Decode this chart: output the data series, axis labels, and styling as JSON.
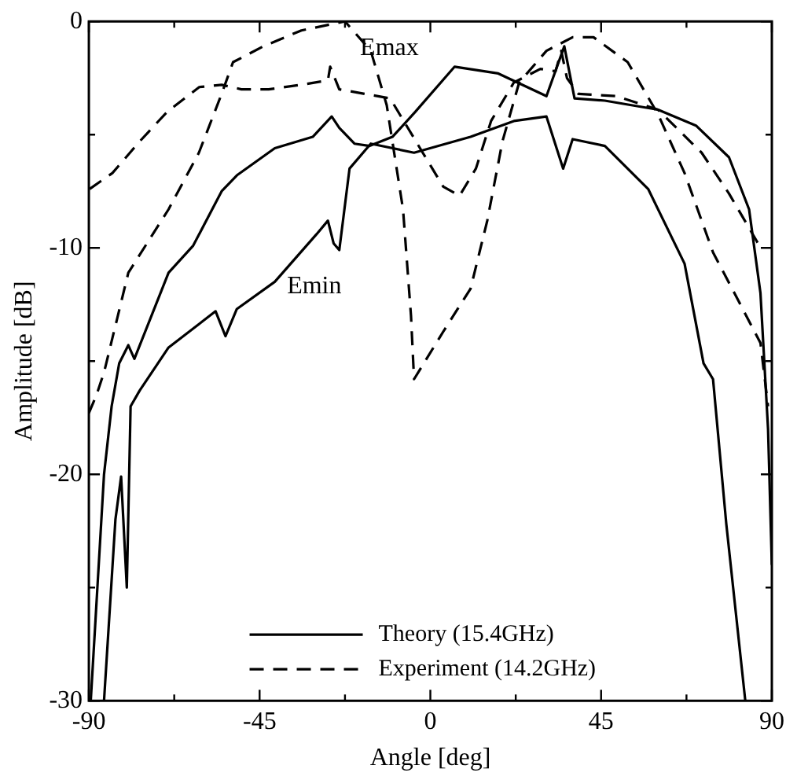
{
  "chart_data": {
    "type": "line",
    "xlabel": "Angle [deg]",
    "ylabel": "Amplitude [dB]",
    "xlim": [
      -90,
      90
    ],
    "ylim": [
      -30,
      0
    ],
    "xticks": [
      -90,
      {
        "value": -67.5,
        "label": null
      },
      -45,
      {
        "value": -22.5,
        "label": null
      },
      0,
      {
        "value": 22.5,
        "label": null
      },
      45,
      {
        "value": 67.5,
        "label": null
      },
      90
    ],
    "yticks": [
      -30,
      {
        "value": -25,
        "label": null
      },
      -20,
      {
        "value": -15,
        "label": null
      },
      -10,
      {
        "value": -5,
        "label": null
      },
      0
    ],
    "grid": false,
    "legend": "bottom",
    "marker": "none",
    "annotations": [
      "Emax",
      "Emin"
    ],
    "series": [
      {
        "name": "Theory (15.4GHz)",
        "color": "#000000",
        "line_style": "solid",
        "x": [
          -89.5,
          -86,
          -84,
          -82,
          -79.6,
          -78,
          -69,
          -62.5,
          -55,
          -51,
          -41,
          -31,
          -26,
          -24,
          -20,
          -16,
          -10,
          -4,
          6.4,
          17.9,
          30.6,
          35.3,
          38,
          46,
          60,
          70,
          78.7,
          84,
          87,
          89,
          90
        ],
        "values": [
          -30,
          -20,
          -17,
          -15.1,
          -14.3,
          -14.9,
          -11.1,
          -9.9,
          -7.5,
          -6.8,
          -5.6,
          -5.1,
          -4.2,
          -4.7,
          -5.4,
          -5.5,
          -5.1,
          -4,
          -2,
          -2.3,
          -3.3,
          -1.1,
          -3.4,
          -3.5,
          -3.9,
          -4.6,
          -6,
          -8.3,
          -12,
          -18,
          -24
        ]
      },
      {
        "color": "#000000",
        "line_style": "solid",
        "x": [
          -86,
          -83,
          -81.5,
          -80,
          -79,
          -76.6,
          -69,
          -56.6,
          -54,
          -51,
          -41,
          -30,
          -27,
          -25.5,
          -24,
          -21.3,
          -15.7,
          -4.3,
          10.6,
          22,
          30.6,
          35,
          37.5,
          46,
          57.4,
          67,
          72,
          74.5,
          78,
          83
        ],
        "values": [
          -30,
          -22,
          -20.1,
          -25,
          -17,
          -16.3,
          -14.4,
          -12.8,
          -13.9,
          -12.7,
          -11.5,
          -9.4,
          -8.8,
          -9.8,
          -10.1,
          -6.5,
          -5.4,
          -5.8,
          -5.1,
          -4.4,
          -4.2,
          -6.5,
          -5.2,
          -5.5,
          -7.4,
          -10.7,
          -15.1,
          -15.8,
          -22.2,
          -30
        ]
      },
      {
        "name": "Experiment (14.2GHz)",
        "color": "#000000",
        "line_style": "dashed",
        "x": [
          -89.8,
          -83.8,
          -76.6,
          -69.4,
          -60.9,
          -55,
          -49.8,
          -42.6,
          -34,
          -27,
          -26.4,
          -24,
          -10.6,
          -2,
          3.4,
          7.7,
          12,
          16,
          22,
          29,
          33,
          34.5,
          36,
          39,
          49,
          60,
          71.5,
          78.7,
          86,
          87
        ],
        "values": [
          -7.4,
          -6.7,
          -5.3,
          -4,
          -2.9,
          -2.8,
          -3,
          -3,
          -2.8,
          -2.6,
          -2,
          -3,
          -3.4,
          -5.8,
          -7.3,
          -7.7,
          -6.5,
          -4.4,
          -2.7,
          -2.1,
          -2.2,
          -1.3,
          -2.5,
          -3.2,
          -3.3,
          -3.9,
          -5.8,
          -7.6,
          -9.7,
          -10
        ]
      },
      {
        "color": "#000000",
        "line_style": "dashed",
        "x": [
          -90,
          -88,
          -86,
          -79.6,
          -69,
          -61,
          -55,
          -52,
          -44,
          -34,
          -22.5,
          -15.7,
          -11.5,
          -7.2,
          -5.1,
          -4.3,
          3.4,
          10.6,
          15,
          19,
          23.4,
          30.6,
          37.5,
          43,
          52,
          60,
          67,
          74.5,
          81.7,
          87,
          89
        ],
        "values": [
          -17.3,
          -16.5,
          -15.5,
          -11.1,
          -8.3,
          -5.8,
          -3.2,
          -1.8,
          -1.1,
          -0.4,
          0,
          -1.3,
          -3.7,
          -8.3,
          -13,
          -15.8,
          -13.7,
          -11.8,
          -8.8,
          -5.3,
          -2.7,
          -1.3,
          -0.7,
          -0.7,
          -1.8,
          -4.1,
          -6.7,
          -10.2,
          -12.5,
          -14.2,
          -17
        ]
      }
    ]
  }
}
